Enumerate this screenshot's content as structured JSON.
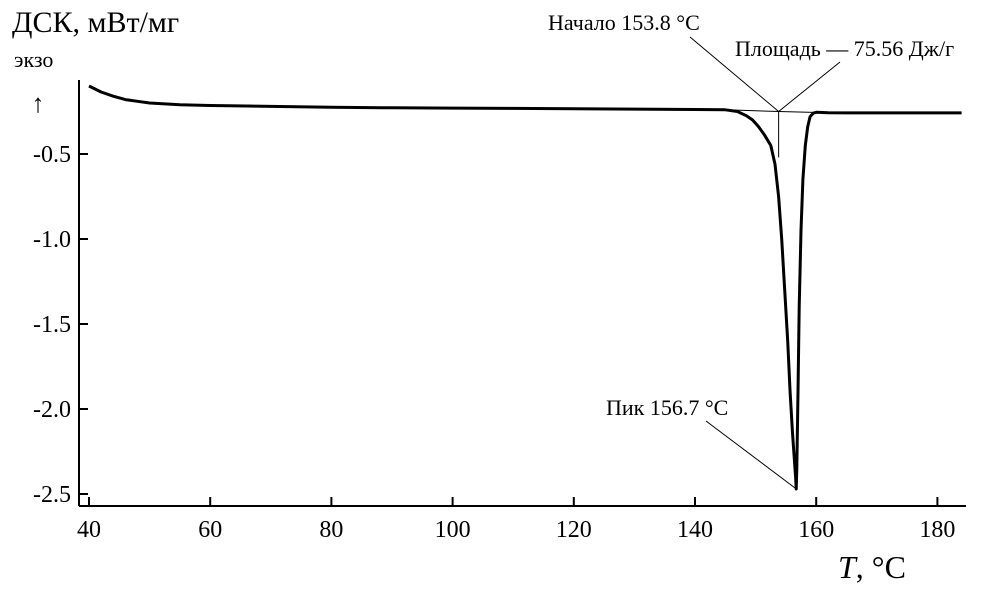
{
  "chart_data": {
    "type": "line",
    "ylabel": "ДСК, мВт/мг",
    "exo_label": "экзо",
    "exo_arrow": "↑",
    "xlabel_symbol": "T",
    "xlabel_unit": ", °C",
    "xlim": [
      39.5,
      185
    ],
    "ylim": [
      -2.55,
      0.0
    ],
    "x_ticks": [
      40,
      60,
      80,
      100,
      120,
      140,
      160,
      180
    ],
    "x_tick_labels": [
      "40",
      "60",
      "80",
      "100",
      "120",
      "140",
      "160",
      "180"
    ],
    "y_ticks": [
      -0.5,
      -1.0,
      -1.5,
      -2.0,
      -2.5
    ],
    "y_tick_labels": [
      "-0.5",
      "-1.0",
      "-1.5",
      "-2.0",
      "-2.5"
    ],
    "grid": false,
    "series": [
      {
        "x": [
          40.0,
          42.0,
          44.0,
          46.0,
          48.0,
          50.0,
          55.0,
          60.0,
          70.0,
          80.0,
          90.0,
          100.0,
          110.0,
          120.0,
          130.0,
          140.0,
          145.0,
          147.0,
          148.5,
          149.5,
          150.5,
          151.5,
          152.5,
          153.2,
          153.8,
          154.3,
          154.8,
          155.3,
          155.7,
          156.1,
          156.4,
          156.6,
          156.7,
          156.8,
          157.0,
          157.2,
          157.5,
          157.8,
          158.2,
          158.6,
          159.0,
          159.5,
          160.0,
          161.0,
          162.0,
          165.0,
          170.0,
          180.0,
          184.0
        ],
        "y": [
          -0.1,
          -0.135,
          -0.16,
          -0.18,
          -0.19,
          -0.2,
          -0.21,
          -0.215,
          -0.22,
          -0.225,
          -0.228,
          -0.23,
          -0.232,
          -0.234,
          -0.236,
          -0.238,
          -0.24,
          -0.25,
          -0.275,
          -0.3,
          -0.34,
          -0.39,
          -0.45,
          -0.56,
          -0.75,
          -1.0,
          -1.3,
          -1.6,
          -1.9,
          -2.15,
          -2.3,
          -2.4,
          -2.47,
          -2.35,
          -1.9,
          -1.4,
          -0.95,
          -0.65,
          -0.45,
          -0.34,
          -0.28,
          -0.26,
          -0.255,
          -0.256,
          -0.257,
          -0.258,
          -0.258,
          -0.258,
          -0.258
        ]
      }
    ],
    "baseline": {
      "x": [
        145.0,
        153.8,
        162.0
      ],
      "y": [
        -0.24,
        -0.25,
        -0.257
      ]
    },
    "onset_line": {
      "x": [
        153.8,
        153.8
      ],
      "y": [
        -0.25,
        -0.52
      ]
    },
    "annotations": [
      {
        "text": "Начало 153.8 °C",
        "x": 153.8,
        "y": -0.25
      },
      {
        "text": "Площадь — 75.56 Дж/г",
        "x": 153.8,
        "y": -0.25
      },
      {
        "text": "Пик 156.7 °C",
        "x": 156.7,
        "y": -2.47
      }
    ]
  }
}
